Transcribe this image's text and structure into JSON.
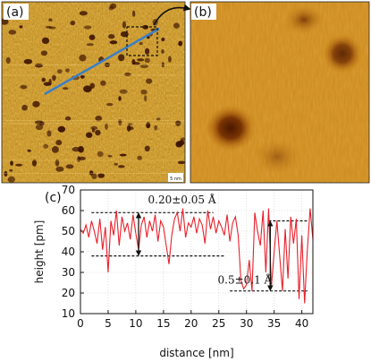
{
  "panels": {
    "a": {
      "label": "(a)",
      "scalebar_label": "5 nm"
    },
    "b": {
      "label": "(b)"
    },
    "c": {
      "label": "(c)"
    }
  },
  "colors": {
    "profile_line": "#3a7fc8",
    "trace": "#e8202a",
    "afm_dark": "#3b1200",
    "afm_mid": "#c8780e",
    "afm_bright": "#f5c84a"
  },
  "chart_data": {
    "type": "line",
    "xlabel": "distance [nm]",
    "ylabel": "height [pm]",
    "xlim": [
      0,
      42
    ],
    "ylim": [
      10,
      70
    ],
    "xticks": [
      0,
      5,
      10,
      15,
      20,
      25,
      30,
      35,
      40
    ],
    "yticks": [
      10,
      20,
      30,
      40,
      50,
      60,
      70
    ],
    "grid": true,
    "series": [
      {
        "x": [
          0,
          0.5,
          1,
          1.5,
          2,
          2.5,
          3,
          3.5,
          4,
          4.5,
          5,
          5.5,
          6,
          6.5,
          7,
          7.5,
          8,
          8.5,
          9,
          9.5,
          10,
          10.5,
          11,
          11.5,
          12,
          12.5,
          13,
          13.5,
          14,
          14.5,
          15,
          15.5,
          16,
          16.5,
          17,
          17.5,
          18,
          18.5,
          19,
          19.5,
          20,
          20.5,
          21,
          21.5,
          22,
          22.5,
          23,
          23.5,
          24,
          24.5,
          25,
          25.5,
          26,
          26.5,
          27,
          27.5,
          28,
          28.5,
          29,
          29.5,
          30,
          30.5,
          31,
          31.5,
          32,
          32.5,
          33,
          33.5,
          34,
          34.5,
          35,
          35.5,
          36,
          36.5,
          37,
          37.5,
          38,
          38.5,
          39,
          39.5,
          40,
          40.5,
          41,
          41.5,
          42
        ],
        "values": [
          51,
          49,
          53,
          47,
          55,
          50,
          44,
          56,
          41,
          52,
          30,
          55,
          48,
          60,
          43,
          57,
          50,
          54,
          46,
          58,
          49,
          41,
          53,
          57,
          47,
          55,
          50,
          58,
          45,
          55,
          52,
          43,
          34,
          48,
          56,
          59,
          50,
          61,
          47,
          54,
          52,
          57,
          49,
          56,
          53,
          44,
          60,
          51,
          57,
          49,
          55,
          52,
          48,
          58,
          45,
          54,
          57,
          48,
          26,
          22,
          24,
          36,
          21,
          59,
          50,
          43,
          60,
          30,
          61,
          23,
          40,
          55,
          38,
          21,
          51,
          27,
          57,
          44,
          56,
          17,
          48,
          15,
          41,
          61,
          46
        ]
      }
    ],
    "annotations": [
      {
        "text": "0.20±0.05 Å",
        "y_top": 59,
        "y_bottom": 38
      },
      {
        "text": "0.5±0.1 Å",
        "y_top": 55,
        "y_bottom": 21
      }
    ]
  }
}
